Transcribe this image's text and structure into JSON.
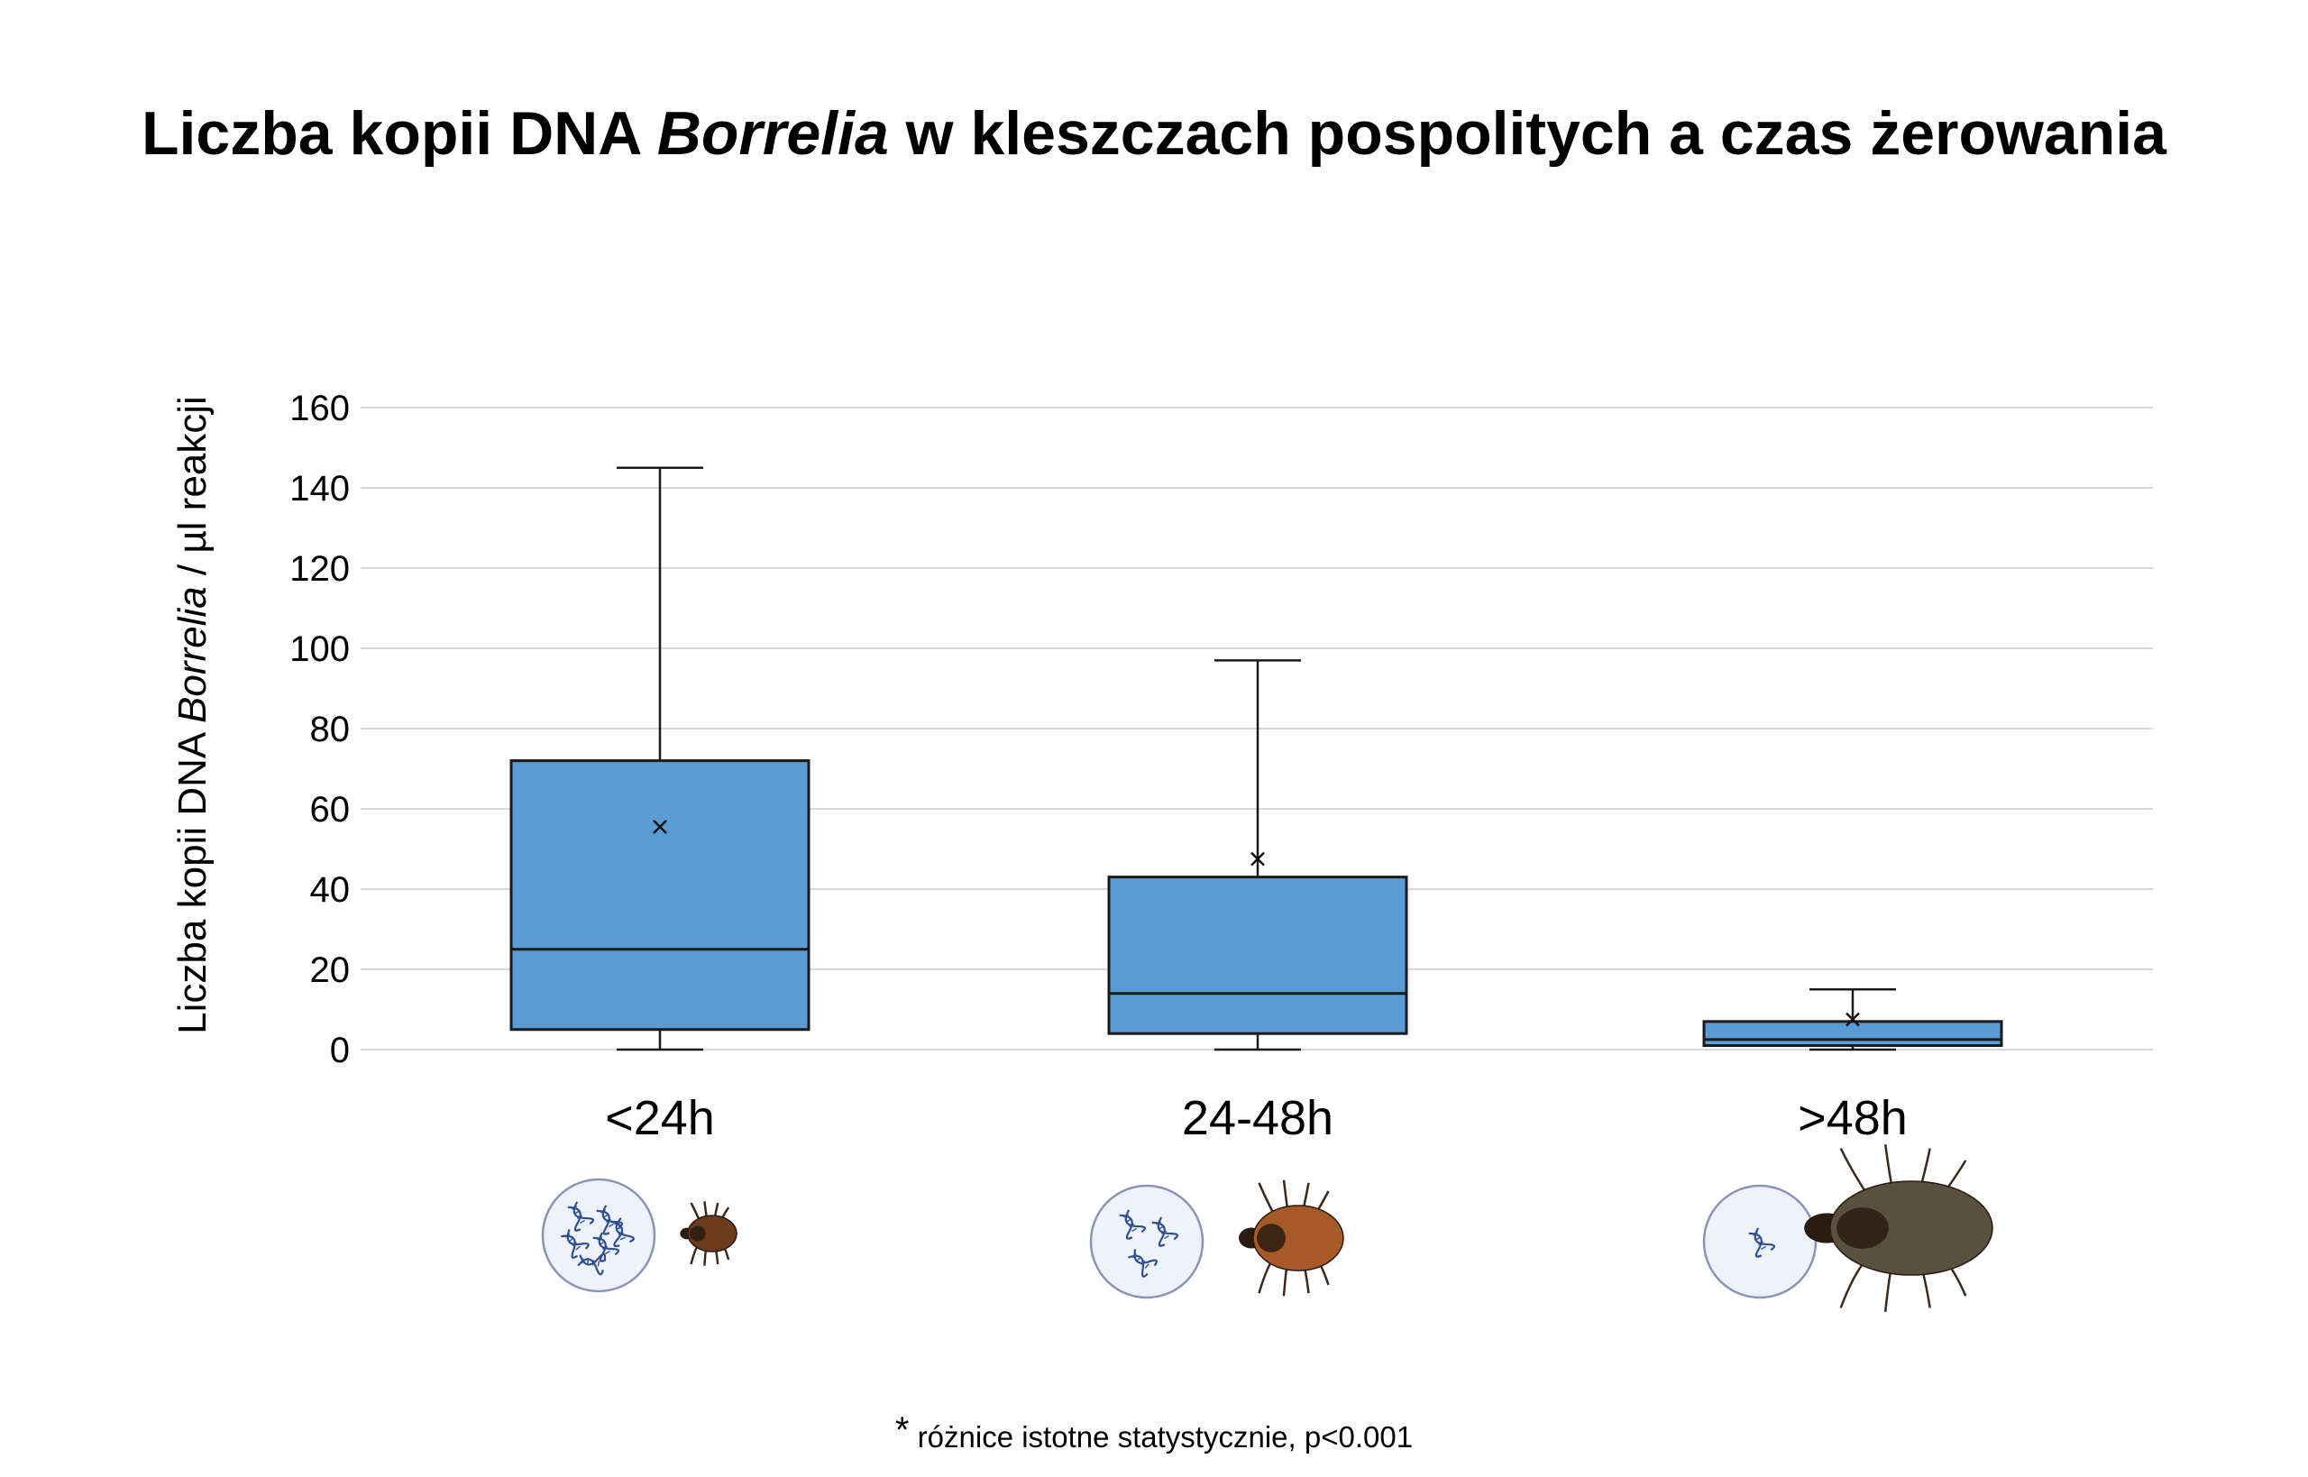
{
  "title": {
    "before": "Liczba kopii DNA ",
    "italic": "Borrelia",
    "after": " w kleszczach pospolitych a czas żerowania"
  },
  "footnote": {
    "star": "*",
    "text": "różnice istotne statystycznie, p<0.001"
  },
  "colors": {
    "box_fill": "#5b9bd5",
    "box_stroke": "#1a1a1a",
    "grid": "#d9d9d9",
    "circle_fill": "#eef2f9",
    "circle_stroke": "#8a94b8",
    "dna": "#2f4f8f"
  },
  "chart_data": {
    "type": "box",
    "title": "Liczba kopii DNA Borrelia w kleszczach pospolitych a czas żerowania",
    "ylabel": {
      "before": "Liczba kopii DNA ",
      "italic": "Borrelia",
      "after": " / µl reakcji"
    },
    "ylim": [
      0,
      160
    ],
    "yticks": [
      0,
      20,
      40,
      60,
      80,
      100,
      120,
      140,
      160
    ],
    "grid": true,
    "categories": [
      "<24h",
      "24-48h",
      ">48h"
    ],
    "boxes": [
      {
        "category": "<24h",
        "min": 0,
        "q1": 5,
        "median": 25,
        "q3": 72,
        "max": 145,
        "mean": 55.5
      },
      {
        "category": "24-48h",
        "min": 0,
        "q1": 4,
        "median": 14,
        "q3": 43,
        "max": 97,
        "mean": 47.5
      },
      {
        "category": ">48h",
        "min": 0,
        "q1": 1,
        "median": 2.5,
        "q3": 7,
        "max": 15,
        "mean": 7.5
      }
    ],
    "illustrations": [
      {
        "category": "<24h",
        "dna_icon_count": 6,
        "tick_engorgement": "unfed"
      },
      {
        "category": "24-48h",
        "dna_icon_count": 3,
        "tick_engorgement": "partially-fed"
      },
      {
        "category": ">48h",
        "dna_icon_count": 1,
        "tick_engorgement": "fully-engorged"
      }
    ]
  }
}
